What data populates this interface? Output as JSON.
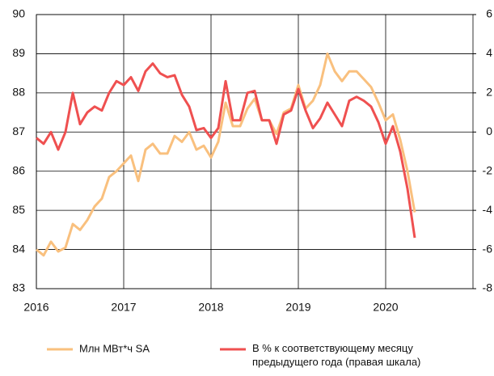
{
  "chart_data": {
    "type": "line",
    "x": [
      2016,
      2016.083,
      2016.167,
      2016.25,
      2016.333,
      2016.417,
      2016.5,
      2016.583,
      2016.667,
      2016.75,
      2016.833,
      2016.917,
      2017,
      2017.083,
      2017.167,
      2017.25,
      2017.333,
      2017.417,
      2017.5,
      2017.583,
      2017.667,
      2017.75,
      2017.833,
      2017.917,
      2018,
      2018.083,
      2018.167,
      2018.25,
      2018.333,
      2018.417,
      2018.5,
      2018.583,
      2018.667,
      2018.75,
      2018.833,
      2018.917,
      2019,
      2019.083,
      2019.167,
      2019.25,
      2019.333,
      2019.417,
      2019.5,
      2019.583,
      2019.667,
      2019.75,
      2019.833,
      2019.917,
      2020,
      2020.083,
      2020.167,
      2020.25,
      2020.333
    ],
    "series": [
      {
        "name": "Млн МВт*ч SA",
        "color": "#f9c07e",
        "axis": "y",
        "values": [
          84.0,
          83.85,
          84.2,
          83.95,
          84.05,
          84.65,
          84.5,
          84.75,
          85.1,
          85.3,
          85.85,
          86.0,
          86.2,
          86.4,
          85.75,
          86.55,
          86.7,
          86.45,
          86.45,
          86.9,
          86.75,
          87.0,
          86.55,
          86.65,
          86.35,
          86.75,
          87.75,
          87.15,
          87.15,
          87.6,
          87.85,
          87.3,
          87.3,
          86.95,
          87.5,
          87.6,
          88.2,
          87.6,
          87.8,
          88.2,
          89.0,
          88.55,
          88.3,
          88.55,
          88.55,
          88.35,
          88.15,
          87.75,
          87.3,
          87.45,
          86.8,
          86.0,
          84.95
        ]
      },
      {
        "name": "В % к соответствующему месяцу предыдущего года (правая шкала)",
        "color": "#ef5050",
        "axis": "y2",
        "values": [
          -0.3,
          -0.6,
          0,
          -0.9,
          0,
          2.0,
          0.4,
          1.0,
          1.3,
          1.1,
          2.0,
          2.6,
          2.4,
          2.8,
          2.1,
          3.1,
          3.5,
          3.0,
          2.8,
          2.9,
          1.9,
          1.3,
          0.1,
          0.2,
          -0.3,
          0.2,
          2.6,
          0.6,
          0.6,
          2.0,
          2.1,
          0.6,
          0.6,
          -0.6,
          0.9,
          1.1,
          2.2,
          1.1,
          0.2,
          0.7,
          1.5,
          0.9,
          0.3,
          1.6,
          1.8,
          1.6,
          1.3,
          0.5,
          -0.6,
          0.3,
          -1.0,
          -2.9,
          -5.4
        ]
      }
    ],
    "xlim": [
      2016,
      2021
    ],
    "xticks": [
      2016,
      2017,
      2018,
      2019,
      2020
    ],
    "ylim": [
      83,
      90
    ],
    "yticks": [
      83,
      84,
      85,
      86,
      87,
      88,
      89,
      90
    ],
    "y2lim": [
      -8,
      6
    ],
    "y2ticks": [
      -8,
      -6,
      -4,
      -2,
      0,
      2,
      4,
      6
    ],
    "grid": true
  }
}
